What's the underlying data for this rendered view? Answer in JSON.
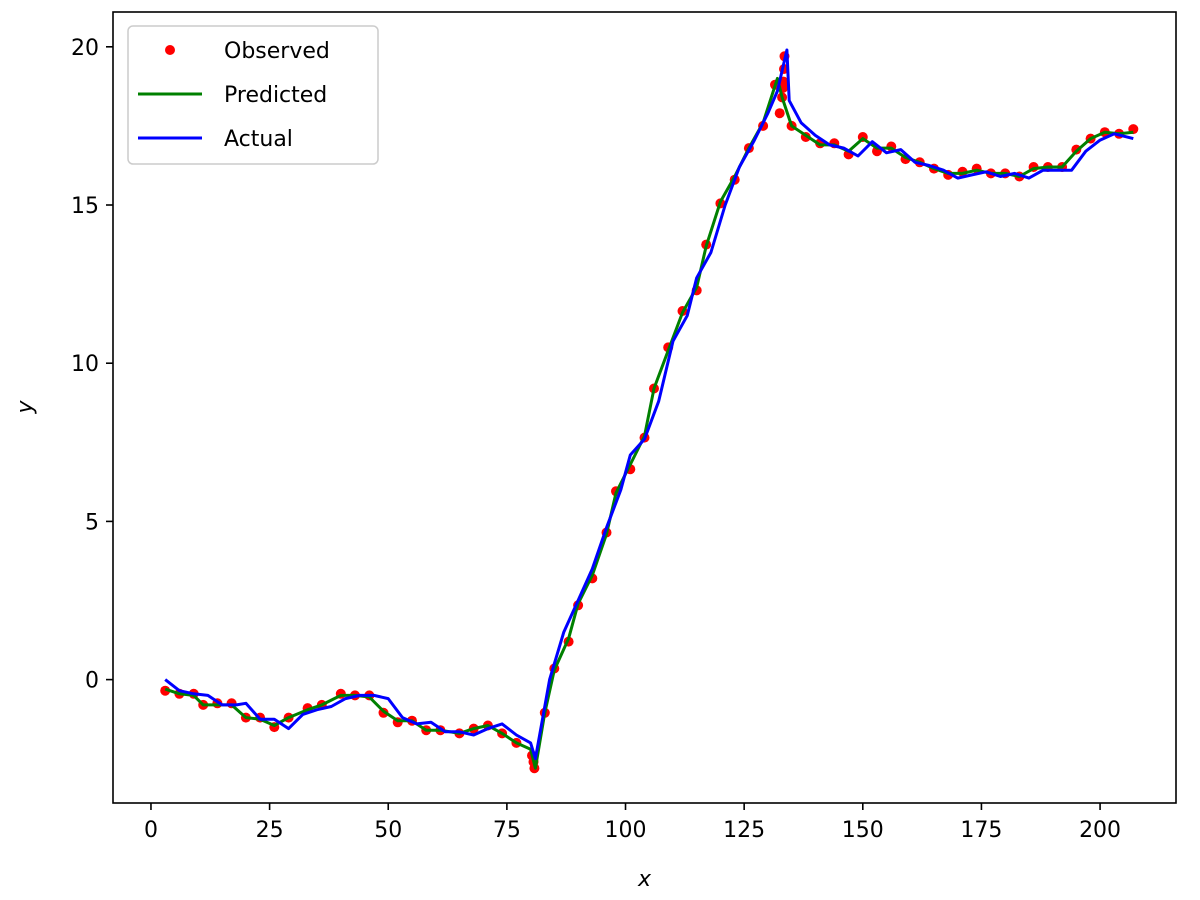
{
  "chart_data": {
    "type": "line",
    "title": "",
    "xlabel": "x",
    "ylabel": "y",
    "xlim": [
      -8,
      216
    ],
    "ylim": [
      -3.9,
      21.1
    ],
    "xticks": [
      0,
      25,
      50,
      75,
      100,
      125,
      150,
      175,
      200
    ],
    "yticks": [
      0,
      5,
      10,
      15,
      20
    ],
    "grid": false,
    "legend_position": "top-left",
    "colors": {
      "Observed": "#ff0000",
      "Predicted": "#008000",
      "Actual": "#0000ff"
    },
    "series": [
      {
        "name": "Observed",
        "type": "scatter",
        "x": [
          3,
          6,
          9,
          11,
          14,
          17,
          20,
          23,
          26,
          29,
          33,
          36,
          40,
          43,
          46,
          49,
          52,
          55,
          58,
          61,
          65,
          68,
          71,
          74,
          77,
          80.3,
          80.6,
          80.8,
          83,
          85,
          88,
          90,
          93,
          96,
          98,
          101,
          104,
          106,
          109,
          112,
          115,
          117,
          120,
          123,
          126,
          129,
          131.5,
          132.5,
          133,
          133.2,
          133.3,
          133.4,
          133.5,
          135,
          138,
          141,
          144,
          147,
          150,
          153,
          156,
          159,
          162,
          165,
          168,
          171,
          174,
          177,
          180,
          183,
          186,
          189,
          192,
          195,
          198,
          201,
          204,
          207
        ],
        "values": [
          -0.35,
          -0.45,
          -0.45,
          -0.8,
          -0.75,
          -0.75,
          -1.2,
          -1.2,
          -1.5,
          -1.2,
          -0.9,
          -0.8,
          -0.45,
          -0.5,
          -0.5,
          -1.05,
          -1.35,
          -1.3,
          -1.6,
          -1.6,
          -1.7,
          -1.55,
          -1.45,
          -1.7,
          -2.0,
          -2.4,
          -2.6,
          -2.8,
          -1.05,
          0.35,
          1.2,
          2.35,
          3.2,
          4.65,
          5.95,
          6.65,
          7.65,
          9.2,
          10.5,
          11.65,
          12.3,
          13.75,
          15.05,
          15.8,
          16.8,
          17.5,
          18.8,
          17.9,
          18.4,
          18.7,
          18.9,
          19.3,
          19.7,
          17.5,
          17.15,
          16.95,
          16.95,
          16.6,
          17.15,
          16.7,
          16.85,
          16.45,
          16.35,
          16.15,
          15.95,
          16.05,
          16.15,
          16.0,
          16.0,
          15.9,
          16.2,
          16.2,
          16.2,
          16.75,
          17.1,
          17.3,
          17.25,
          17.4
        ]
      },
      {
        "name": "Predicted",
        "type": "line",
        "x": [
          3,
          6,
          9,
          11,
          14,
          17,
          20,
          23,
          26,
          29,
          33,
          36,
          40,
          43,
          46,
          49,
          52,
          55,
          58,
          61,
          65,
          68,
          71,
          74,
          77,
          80,
          81,
          83,
          85,
          88,
          90,
          93,
          96,
          98,
          101,
          104,
          106,
          109,
          112,
          115,
          117,
          120,
          123,
          126,
          129,
          132,
          133,
          135,
          138,
          141,
          144,
          147,
          150,
          153,
          156,
          159,
          162,
          165,
          168,
          171,
          174,
          177,
          180,
          183,
          186,
          189,
          192,
          195,
          198,
          201,
          204,
          207
        ],
        "values": [
          -0.3,
          -0.45,
          -0.5,
          -0.8,
          -0.8,
          -0.8,
          -1.2,
          -1.25,
          -1.45,
          -1.2,
          -0.95,
          -0.8,
          -0.5,
          -0.5,
          -0.55,
          -1.0,
          -1.3,
          -1.3,
          -1.6,
          -1.6,
          -1.7,
          -1.55,
          -1.45,
          -1.7,
          -2.0,
          -2.2,
          -2.8,
          -1.05,
          0.3,
          1.3,
          2.4,
          3.3,
          4.6,
          5.9,
          6.8,
          7.7,
          9.2,
          10.4,
          11.6,
          12.4,
          13.7,
          15.1,
          15.9,
          16.8,
          17.6,
          19.0,
          18.4,
          17.5,
          17.2,
          16.9,
          16.9,
          16.7,
          17.1,
          16.8,
          16.8,
          16.5,
          16.35,
          16.15,
          16.0,
          16.0,
          16.1,
          16.0,
          16.0,
          15.9,
          16.15,
          16.2,
          16.2,
          16.7,
          17.1,
          17.3,
          17.25,
          17.3
        ]
      },
      {
        "name": "Actual",
        "type": "line",
        "x": [
          3,
          6,
          9,
          12,
          15,
          18,
          20,
          23,
          26,
          29,
          32,
          35,
          38,
          41,
          44,
          47,
          50,
          53,
          56,
          59,
          62,
          65,
          68,
          71,
          74,
          77,
          80,
          81,
          84,
          87,
          90,
          93,
          96,
          99,
          101,
          104,
          107,
          110,
          113,
          115,
          118,
          121,
          124,
          127,
          130,
          132,
          134,
          134.5,
          137,
          140,
          143,
          146,
          149,
          152,
          155,
          158,
          161,
          164,
          167,
          170,
          173,
          176,
          179,
          182,
          185,
          188,
          191,
          194,
          197,
          200,
          203,
          207
        ],
        "values": [
          0.0,
          -0.35,
          -0.45,
          -0.5,
          -0.8,
          -0.8,
          -0.75,
          -1.25,
          -1.25,
          -1.55,
          -1.1,
          -0.95,
          -0.85,
          -0.6,
          -0.5,
          -0.5,
          -0.6,
          -1.2,
          -1.4,
          -1.35,
          -1.65,
          -1.65,
          -1.75,
          -1.55,
          -1.4,
          -1.75,
          -2.0,
          -2.5,
          0.0,
          1.5,
          2.5,
          3.5,
          4.8,
          6.0,
          7.1,
          7.6,
          8.8,
          10.7,
          11.5,
          12.7,
          13.5,
          15.0,
          16.2,
          17.0,
          17.9,
          18.6,
          19.9,
          18.3,
          17.6,
          17.2,
          16.9,
          16.8,
          16.55,
          17.0,
          16.65,
          16.75,
          16.35,
          16.25,
          16.1,
          15.85,
          15.95,
          16.05,
          15.9,
          16.0,
          15.85,
          16.1,
          16.1,
          16.1,
          16.7,
          17.05,
          17.25,
          17.1
        ]
      }
    ]
  }
}
